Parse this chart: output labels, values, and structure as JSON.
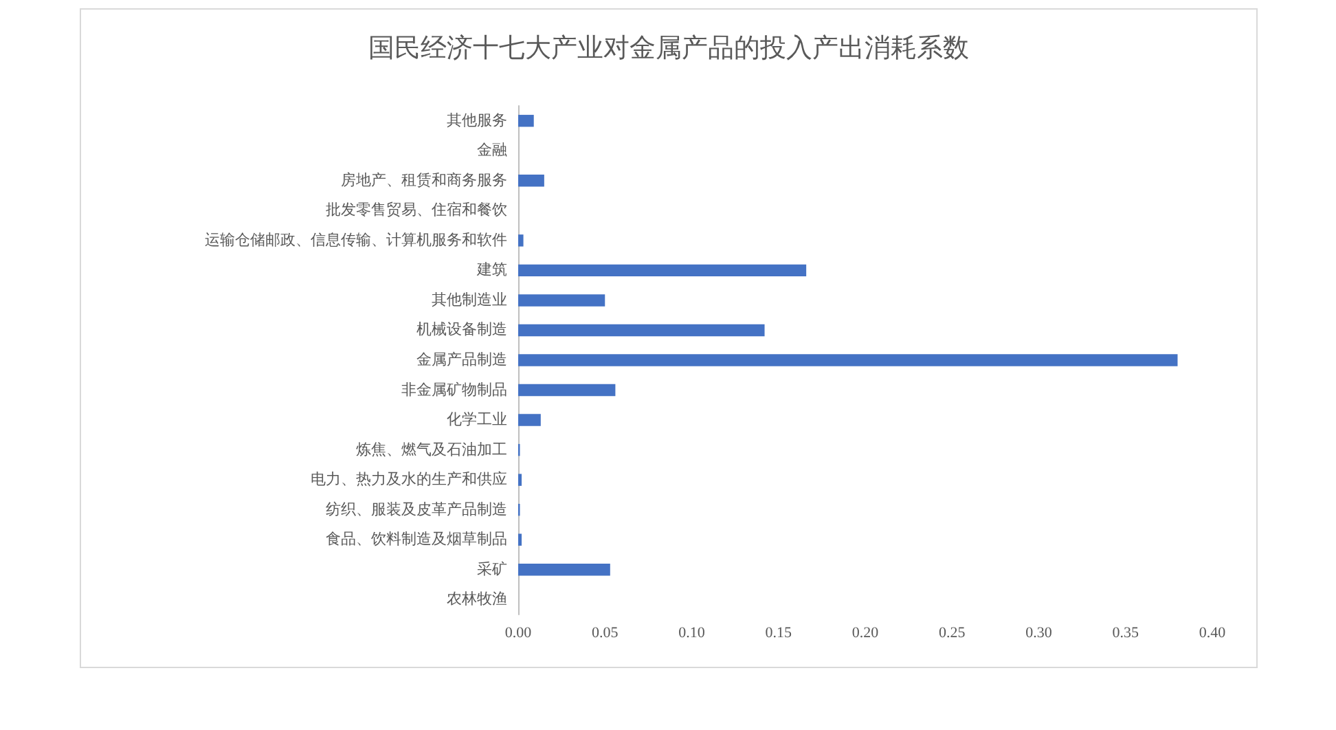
{
  "chart_data": {
    "type": "bar",
    "orientation": "horizontal",
    "title": "国民经济十七大产业对金属产品的投入产出消耗系数",
    "categories": [
      "其他服务",
      "金融",
      "房地产、租赁和商务服务",
      "批发零售贸易、住宿和餐饮",
      "运输仓储邮政、信息传输、计算机服务和软件",
      "建筑",
      "其他制造业",
      "机械设备制造",
      "金属产品制造",
      "非金属矿物制品",
      "化学工业",
      "炼焦、燃气及石油加工",
      "电力、热力及水的生产和供应",
      "纺织、服装及皮革产品制造",
      "食品、饮料制造及烟草制品",
      "采矿",
      "农林牧渔"
    ],
    "values": [
      0.009,
      0,
      0.015,
      0,
      0.003,
      0.166,
      0.05,
      0.142,
      0.38,
      0.056,
      0.013,
      0.001,
      0.002,
      0.001,
      0.002,
      0.053,
      0
    ],
    "color": "#4472c4",
    "xlim": [
      0,
      0.4
    ],
    "xticks": [
      {
        "value": 0,
        "label": "0.00"
      },
      {
        "value": 0.05,
        "label": "0.05"
      },
      {
        "value": 0.1,
        "label": "0.10"
      },
      {
        "value": 0.15,
        "label": "0.15"
      },
      {
        "value": 0.2,
        "label": "0.20"
      },
      {
        "value": 0.25,
        "label": "0.25"
      },
      {
        "value": 0.3,
        "label": "0.30"
      },
      {
        "value": 0.35,
        "label": "0.35"
      },
      {
        "value": 0.4,
        "label": "0.40"
      }
    ],
    "grid": false
  }
}
